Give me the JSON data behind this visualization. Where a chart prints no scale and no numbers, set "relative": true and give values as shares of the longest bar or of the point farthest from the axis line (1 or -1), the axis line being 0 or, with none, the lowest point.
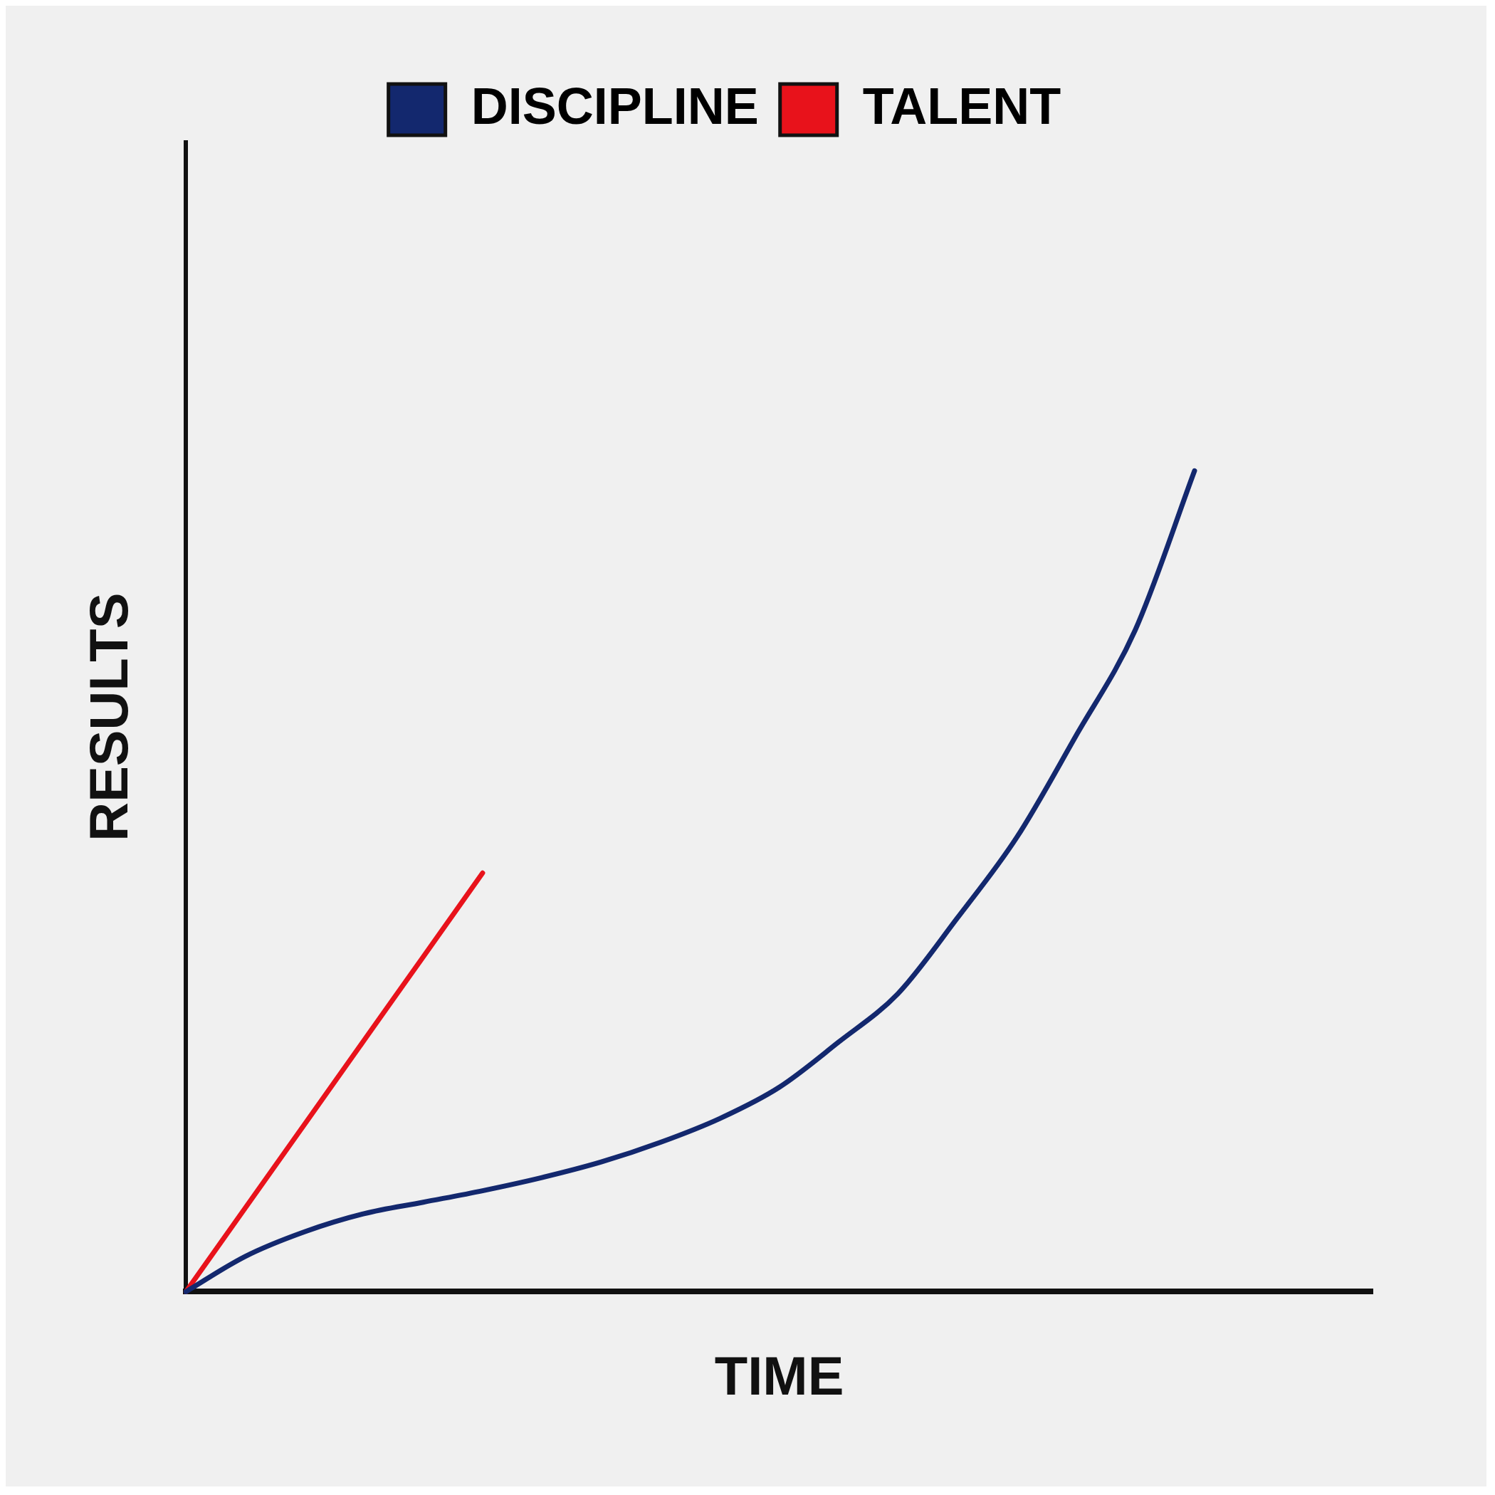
{
  "chart_data": {
    "type": "line",
    "xlabel": "TIME",
    "ylabel": "RESULTS",
    "relative": true,
    "categories": [
      null,
      null,
      null,
      null,
      null,
      null,
      null,
      null,
      null,
      null,
      null,
      null,
      null,
      null,
      null,
      null,
      null,
      null,
      null,
      null,
      null
    ],
    "grid": false,
    "legend": "top",
    "marker": "none",
    "line_style": "solid",
    "series": [
      {
        "name": "DISCIPLINE",
        "color": "#13286e",
        "values": [
          0,
          0.043,
          0.073,
          0.095,
          0.109,
          0.123,
          0.139,
          0.158,
          0.182,
          0.211,
          0.249,
          0.304,
          0.363,
          0.455,
          0.553,
          0.677,
          0.806,
          1,
          null,
          null,
          null
        ]
      },
      {
        "name": "TALENT",
        "color": "#e8121b",
        "values": [
          0,
          0.102,
          0.204,
          0.306,
          0.408,
          0.51,
          null,
          null,
          null,
          null,
          null,
          null,
          null,
          null,
          null,
          null,
          null,
          null,
          null,
          null,
          null
        ]
      }
    ]
  }
}
